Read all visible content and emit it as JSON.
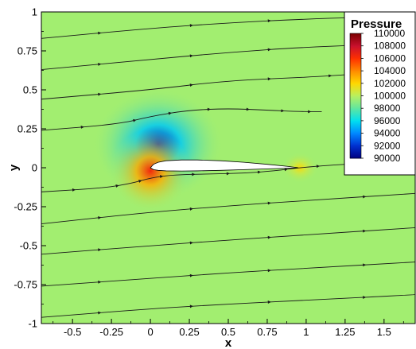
{
  "chart_data": {
    "type": "heatmap",
    "title": "",
    "xlabel": "x",
    "ylabel": "y",
    "xlim": [
      -0.7,
      1.7
    ],
    "ylim": [
      -1,
      1
    ],
    "x_ticks": [
      "-0.5",
      "-0.25",
      "0",
      "0.25",
      "0.5",
      "0.75",
      "1",
      "1.25",
      "1.5"
    ],
    "x_tick_values": [
      -0.5,
      -0.25,
      0,
      0.25,
      0.5,
      0.75,
      1,
      1.25,
      1.5
    ],
    "y_ticks": [
      "1",
      "0.75",
      "0.5",
      "0.25",
      "0",
      "-0.25",
      "-0.5",
      "-0.75",
      "-1"
    ],
    "y_tick_values": [
      1,
      0.75,
      0.5,
      0.25,
      0,
      -0.25,
      -0.5,
      -0.75,
      -1
    ],
    "grid": false,
    "legend": {
      "title": "Pressure",
      "placement": "top-right",
      "levels": [
        "110000",
        "108000",
        "106000",
        "104000",
        "102000",
        "100000",
        "98000",
        "96000",
        "94000",
        "92000",
        "90000"
      ],
      "level_values": [
        110000,
        108000,
        106000,
        104000,
        102000,
        100000,
        98000,
        96000,
        94000,
        92000,
        90000
      ],
      "colors": [
        "#7a0000",
        "#c8102e",
        "#ff3000",
        "#ff8a00",
        "#ffd800",
        "#b8f060",
        "#60e6a0",
        "#00e0f0",
        "#0088ff",
        "#0030d0",
        "#000080"
      ]
    },
    "airfoil": {
      "leading_edge": [
        0,
        0
      ],
      "trailing_edge": [
        0.95,
        0
      ],
      "upper": [
        [
          0,
          0
        ],
        [
          0.02,
          0.022
        ],
        [
          0.05,
          0.035
        ],
        [
          0.1,
          0.045
        ],
        [
          0.2,
          0.05
        ],
        [
          0.3,
          0.05
        ],
        [
          0.45,
          0.045
        ],
        [
          0.6,
          0.035
        ],
        [
          0.75,
          0.022
        ],
        [
          0.88,
          0.009
        ],
        [
          0.95,
          0
        ]
      ],
      "lower": [
        [
          0,
          0
        ],
        [
          0.02,
          -0.012
        ],
        [
          0.05,
          -0.017
        ],
        [
          0.1,
          -0.02
        ],
        [
          0.2,
          -0.021
        ],
        [
          0.3,
          -0.02
        ],
        [
          0.45,
          -0.017
        ],
        [
          0.6,
          -0.012
        ],
        [
          0.75,
          -0.007
        ],
        [
          0.88,
          -0.003
        ],
        [
          0.95,
          0
        ]
      ]
    },
    "pressure_features": [
      {
        "x": 0.05,
        "y": 0.15,
        "value": 91500
      },
      {
        "x": 0.0,
        "y": -0.02,
        "value": 106500
      },
      {
        "x": 0.96,
        "y": 0.0,
        "value": 101800
      }
    ],
    "freestream_pressure": 99500,
    "streamlines": [
      {
        "points": [
          [
            -0.7,
            0.83
          ],
          [
            0,
            0.895
          ],
          [
            0.5,
            0.93
          ],
          [
            1.0,
            0.955
          ],
          [
            1.7,
            0.975
          ]
        ]
      },
      {
        "points": [
          [
            -0.7,
            0.63
          ],
          [
            0,
            0.695
          ],
          [
            0.5,
            0.74
          ],
          [
            1.0,
            0.775
          ],
          [
            1.7,
            0.8
          ]
        ]
      },
      {
        "points": [
          [
            -0.7,
            0.44
          ],
          [
            0,
            0.5
          ],
          [
            0.5,
            0.56
          ],
          [
            1.0,
            0.58
          ],
          [
            1.3,
            0.6
          ]
        ]
      },
      {
        "points": [
          [
            -0.7,
            0.24
          ],
          [
            -0.2,
            0.28
          ],
          [
            0,
            0.33
          ],
          [
            0.25,
            0.37
          ],
          [
            0.5,
            0.38
          ],
          [
            0.75,
            0.37
          ],
          [
            0.95,
            0.36
          ],
          [
            1.1,
            0.36
          ]
        ]
      },
      {
        "points": [
          [
            -0.7,
            -0.155
          ],
          [
            -0.3,
            -0.13
          ],
          [
            -0.12,
            -0.1
          ],
          [
            0,
            -0.065
          ],
          [
            0.15,
            -0.045
          ],
          [
            0.4,
            -0.04
          ],
          [
            0.6,
            -0.035
          ],
          [
            0.8,
            -0.02
          ],
          [
            0.95,
            0.0
          ],
          [
            1.2,
            0.02
          ],
          [
            1.7,
            0.05
          ]
        ]
      },
      {
        "points": [
          [
            -0.7,
            -0.36
          ],
          [
            0,
            -0.285
          ],
          [
            0.5,
            -0.245
          ],
          [
            1.0,
            -0.21
          ],
          [
            1.7,
            -0.165
          ]
        ]
      },
      {
        "points": [
          [
            -0.7,
            -0.555
          ],
          [
            0,
            -0.5
          ],
          [
            0.5,
            -0.465
          ],
          [
            1.0,
            -0.43
          ],
          [
            1.7,
            -0.385
          ]
        ]
      },
      {
        "points": [
          [
            -0.7,
            -0.76
          ],
          [
            0,
            -0.71
          ],
          [
            0.5,
            -0.675
          ],
          [
            1.0,
            -0.645
          ],
          [
            1.7,
            -0.605
          ]
        ]
      },
      {
        "points": [
          [
            -0.7,
            -0.96
          ],
          [
            0,
            -0.905
          ],
          [
            0.5,
            -0.875
          ],
          [
            1.0,
            -0.85
          ],
          [
            1.7,
            -0.815
          ]
        ]
      }
    ]
  }
}
